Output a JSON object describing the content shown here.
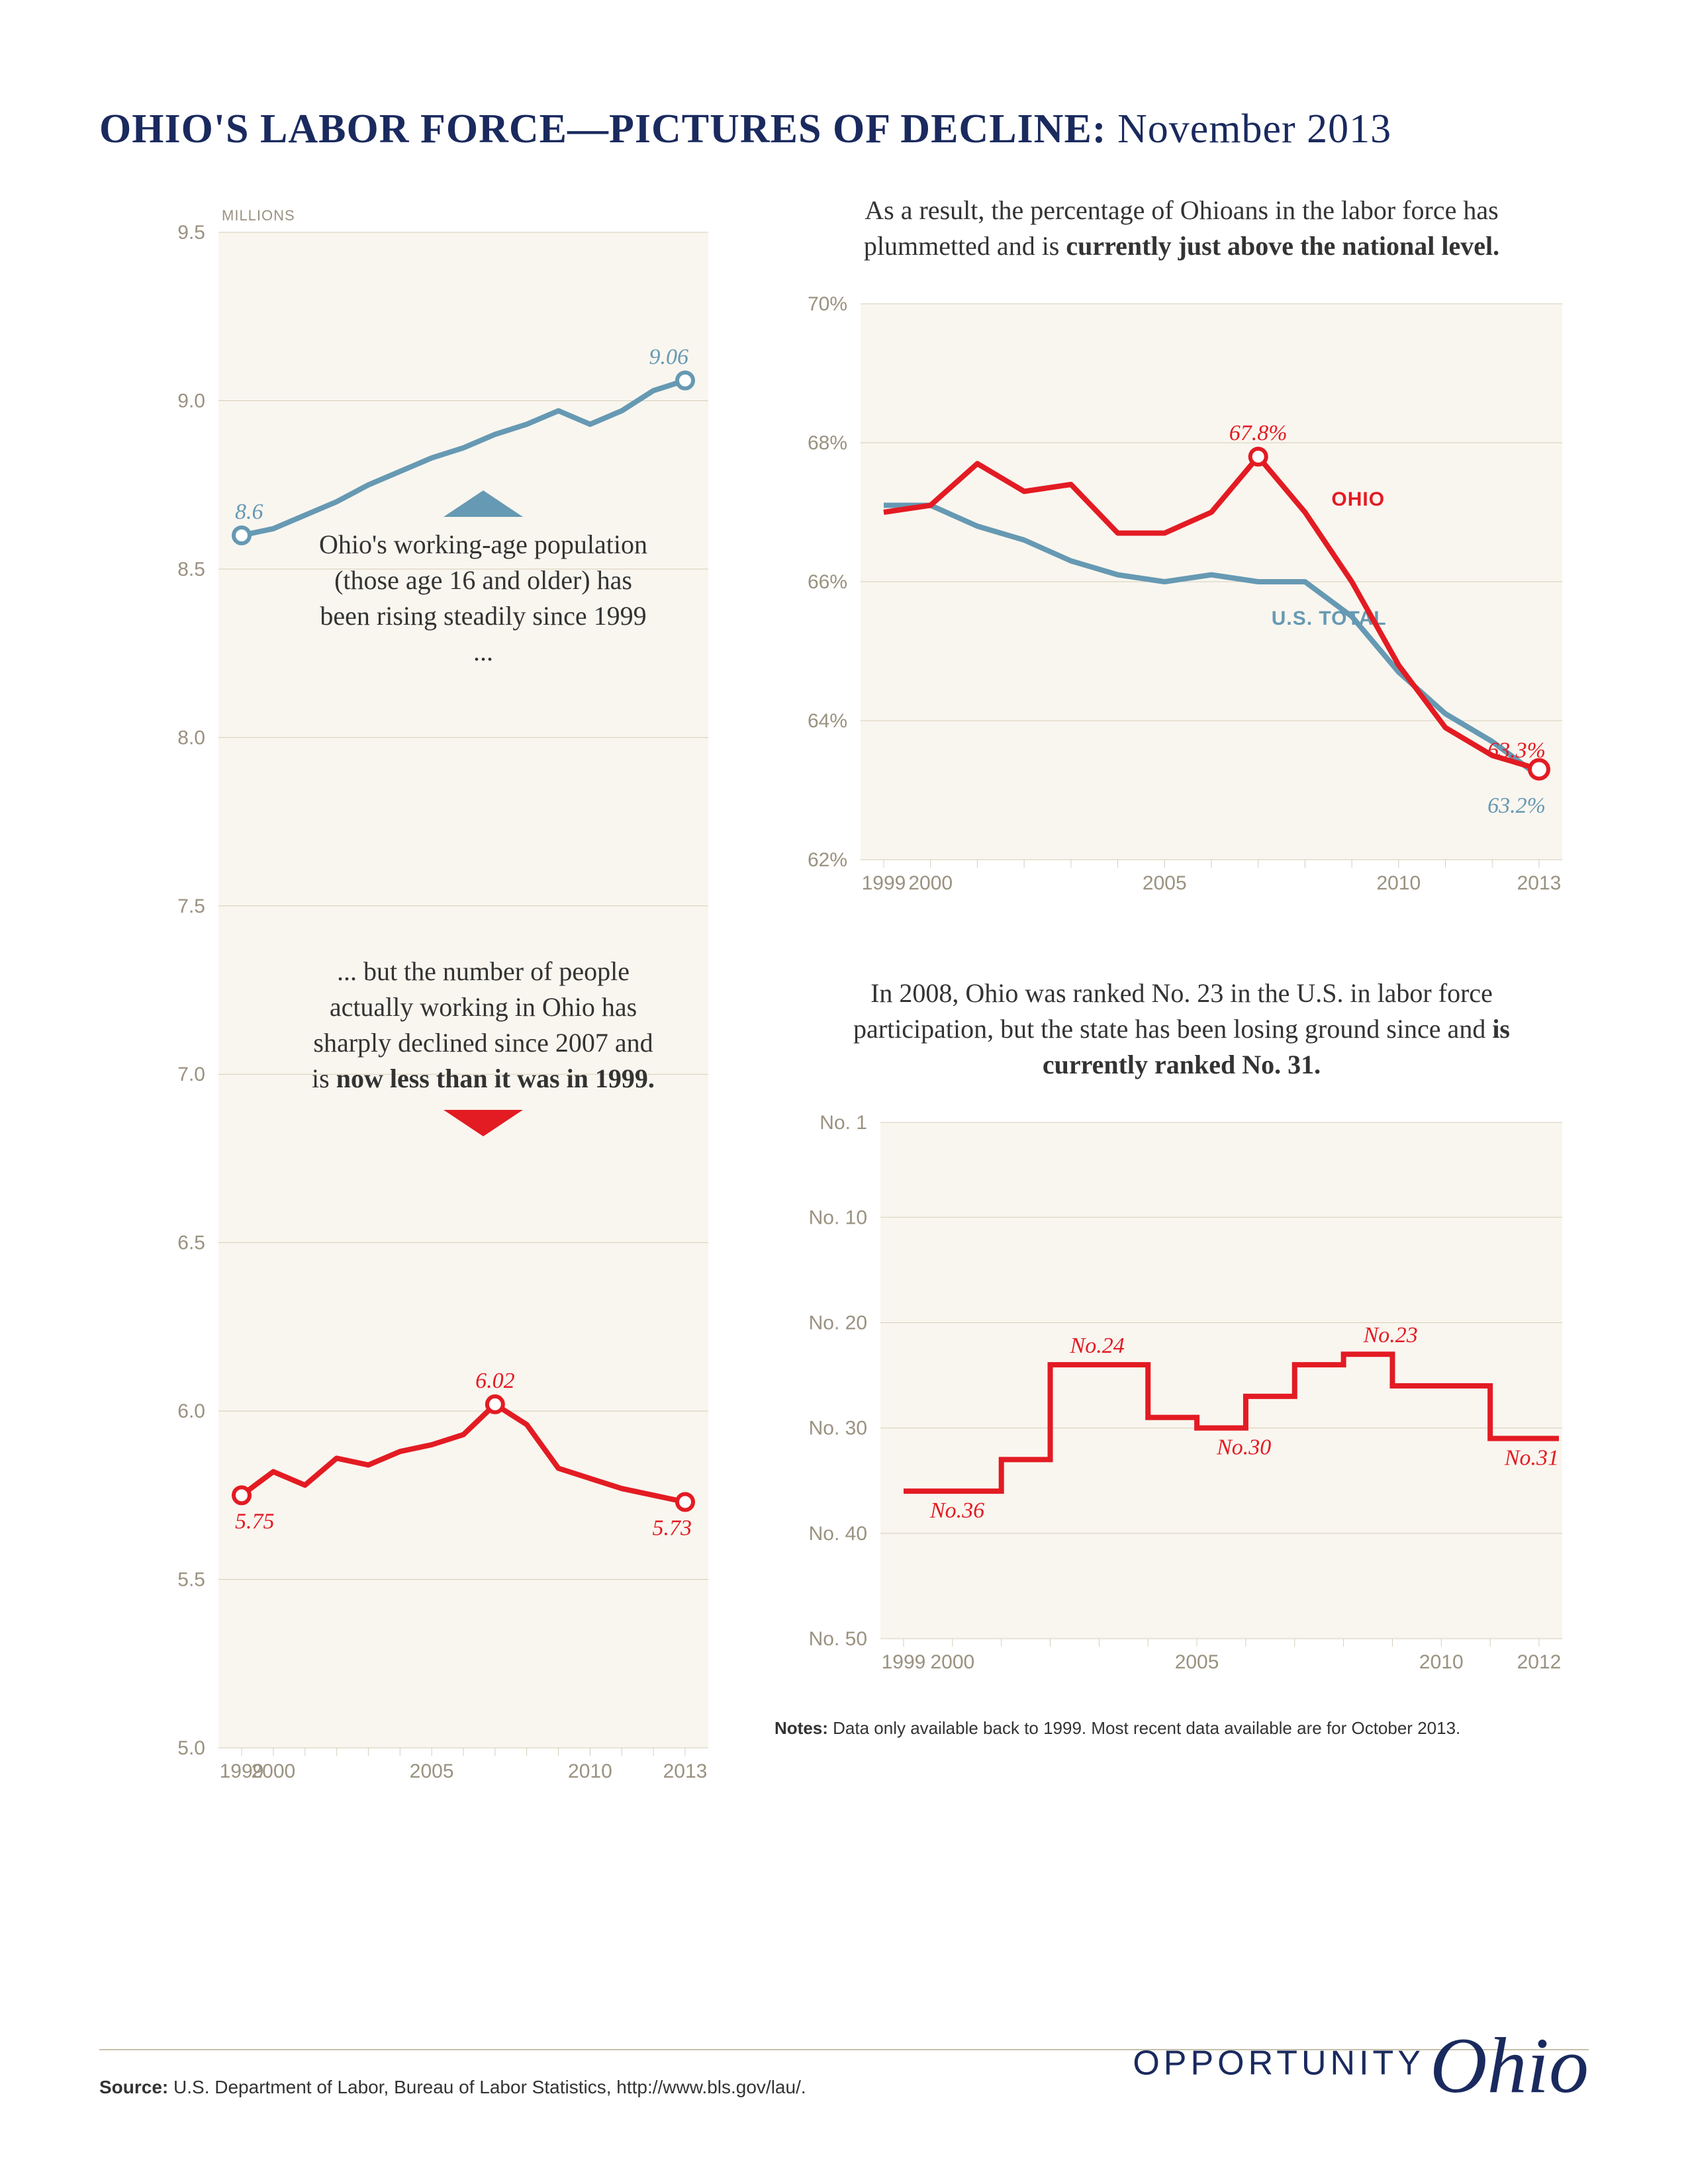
{
  "title_bold": "OHIO'S LABOR FORCE—PICTURES OF DECLINE:",
  "title_rest": " November 2013",
  "left_chart": {
    "type": "line",
    "y_unit_label": "MILLIONS",
    "ylim": [
      5.0,
      9.5
    ],
    "yticks": [
      5.0,
      5.5,
      6.0,
      6.5,
      7.0,
      7.5,
      8.0,
      8.5,
      9.0,
      9.5
    ],
    "years": [
      1999,
      2000,
      2001,
      2002,
      2003,
      2004,
      2005,
      2006,
      2007,
      2008,
      2009,
      2010,
      2011,
      2012,
      2013
    ],
    "xtick_labels": [
      "1999",
      "2000",
      "",
      "",
      "",
      "",
      "2005",
      "",
      "",
      "",
      "",
      "2010",
      "",
      "",
      "2013"
    ],
    "pop_series": {
      "values": [
        8.6,
        8.62,
        8.66,
        8.7,
        8.75,
        8.79,
        8.83,
        8.86,
        8.9,
        8.93,
        8.97,
        8.93,
        8.97,
        9.03,
        9.06
      ],
      "first_label": "8.6",
      "last_label": "9.06",
      "color": "#6699b3"
    },
    "work_series": {
      "values": [
        5.75,
        5.82,
        5.78,
        5.86,
        5.84,
        5.88,
        5.9,
        5.93,
        6.02,
        5.96,
        5.83,
        5.8,
        5.77,
        5.75,
        5.73
      ],
      "peak_label": "6.02",
      "first_label": "5.75",
      "last_label": "5.73",
      "color": "#e31b23"
    },
    "annotation_top": {
      "text_pre": "Ohio's working-age population (those age 16 and older) has been rising steadily since 1999 ...",
      "arrow_color": "#6699b3"
    },
    "annotation_bottom": {
      "text_pre": "... but the number of people actually working in Ohio has sharply declined since 2007 and is ",
      "text_bold": "now less than it was in 1999.",
      "arrow_color": "#e31b23"
    },
    "background_color": "#f9f6ef",
    "grid_color": "#d5cdb8"
  },
  "right_top_chart": {
    "caption_pre": "As a result, the percentage of Ohioans in the labor force has plummetted and is ",
    "caption_bold": "currently just above the national level.",
    "type": "line",
    "ylim": [
      62,
      70
    ],
    "yticks": [
      62,
      64,
      66,
      68,
      70
    ],
    "ytick_labels": [
      "62%",
      "64%",
      "66%",
      "68%",
      "70%"
    ],
    "years": [
      1999,
      2000,
      2001,
      2002,
      2003,
      2004,
      2005,
      2006,
      2007,
      2008,
      2009,
      2010,
      2011,
      2012,
      2013
    ],
    "xtick_labels": [
      "1999",
      "2000",
      "",
      "",
      "",
      "",
      "2005",
      "",
      "",
      "",
      "",
      "2010",
      "",
      "",
      "2013"
    ],
    "ohio_series": {
      "values": [
        67.0,
        67.1,
        67.7,
        67.3,
        67.4,
        66.7,
        66.7,
        67.0,
        67.8,
        67.0,
        66.0,
        64.8,
        63.9,
        63.5,
        63.3
      ],
      "peak_label": "67.8%",
      "last_label": "63.3%",
      "label": "OHIO",
      "color": "#e31b23"
    },
    "us_series": {
      "values": [
        67.1,
        67.1,
        66.8,
        66.6,
        66.3,
        66.1,
        66.0,
        66.1,
        66.0,
        66.0,
        65.5,
        64.7,
        64.1,
        63.7,
        63.2
      ],
      "last_label": "63.2%",
      "label": "U.S. TOTAL",
      "color": "#6699b3"
    }
  },
  "right_bottom_chart": {
    "caption_pre": "In 2008, Ohio was ranked No. 23 in the U.S. in labor force participation, but the state has been losing ground since and ",
    "caption_bold": "is currently ranked No. 31.",
    "type": "step",
    "ylim": [
      50,
      1
    ],
    "yticks": [
      1,
      10,
      20,
      30,
      40,
      50
    ],
    "ytick_labels": [
      "No. 1",
      "No. 10",
      "No. 20",
      "No. 30",
      "No. 40",
      "No. 50"
    ],
    "years": [
      1999,
      2000,
      2001,
      2002,
      2003,
      2004,
      2005,
      2006,
      2007,
      2008,
      2009,
      2010,
      2011,
      2012
    ],
    "xtick_labels": [
      "1999",
      "2000",
      "",
      "",
      "",
      "",
      "2005",
      "",
      "",
      "",
      "",
      "2010",
      "",
      "2012"
    ],
    "rank_series": {
      "values": [
        36,
        36,
        33,
        24,
        24,
        29,
        30,
        27,
        24,
        23,
        26,
        26,
        31,
        31
      ],
      "call_labels": {
        "No.36": 0,
        "No.24": 3,
        "No.30": 6,
        "No.23": 9,
        "No.31": 13
      },
      "color": "#e31b23"
    },
    "note_bold": "Notes:",
    "note_text": " Data only available back to 1999. Most recent data available are for October 2013."
  },
  "source_bold": "Source:",
  "source_text": " U.S. Department of Labor, Bureau of Labor Statistics, http://www.bls.gov/lau/.",
  "brand_opp": "OPPORTUNITY",
  "brand_ohio": "Ohio"
}
